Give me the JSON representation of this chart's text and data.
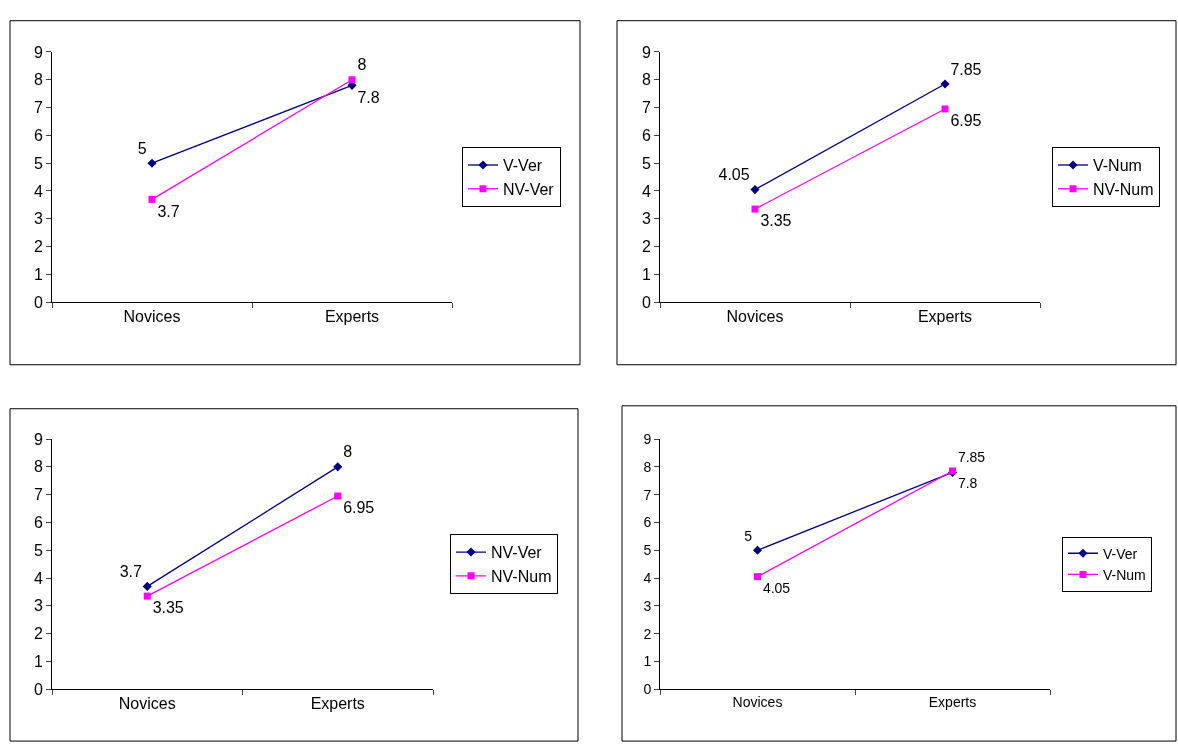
{
  "chart_data": [
    {
      "type": "line",
      "categories": [
        "Novices",
        "Experts"
      ],
      "ylim": [
        0,
        9
      ],
      "yticks": [
        0,
        1,
        2,
        3,
        4,
        5,
        6,
        7,
        8,
        9
      ],
      "legend": "right",
      "data_labels": true,
      "series": [
        {
          "name": "V-Ver",
          "color": "#000080",
          "marker": "diamond",
          "values": [
            5,
            7.8
          ]
        },
        {
          "name": "NV-Ver",
          "color": "#ff00ff",
          "marker": "square",
          "values": [
            3.7,
            8
          ]
        }
      ]
    },
    {
      "type": "line",
      "categories": [
        "Novices",
        "Experts"
      ],
      "ylim": [
        0,
        9
      ],
      "yticks": [
        0,
        1,
        2,
        3,
        4,
        5,
        6,
        7,
        8,
        9
      ],
      "legend": "right",
      "data_labels": true,
      "series": [
        {
          "name": "V-Num",
          "color": "#000080",
          "marker": "diamond",
          "values": [
            4.05,
            7.85
          ]
        },
        {
          "name": "NV-Num",
          "color": "#ff00ff",
          "marker": "square",
          "values": [
            3.35,
            6.95
          ]
        }
      ]
    },
    {
      "type": "line",
      "categories": [
        "Novices",
        "Experts"
      ],
      "ylim": [
        0,
        9
      ],
      "yticks": [
        0,
        1,
        2,
        3,
        4,
        5,
        6,
        7,
        8,
        9
      ],
      "legend": "right",
      "data_labels": true,
      "series": [
        {
          "name": "NV-Ver",
          "color": "#000080",
          "marker": "diamond",
          "values": [
            3.7,
            8
          ]
        },
        {
          "name": "NV-Num",
          "color": "#ff00ff",
          "marker": "square",
          "values": [
            3.35,
            6.95
          ]
        }
      ]
    },
    {
      "type": "line",
      "categories": [
        "Novices",
        "Experts"
      ],
      "ylim": [
        0,
        9
      ],
      "yticks": [
        0,
        1,
        2,
        3,
        4,
        5,
        6,
        7,
        8,
        9
      ],
      "legend": "right",
      "data_labels": true,
      "series": [
        {
          "name": "V-Ver",
          "color": "#000080",
          "marker": "diamond",
          "values": [
            5,
            7.8
          ]
        },
        {
          "name": "V-Num",
          "color": "#ff00ff",
          "marker": "square",
          "values": [
            4.05,
            7.85
          ]
        }
      ]
    }
  ]
}
